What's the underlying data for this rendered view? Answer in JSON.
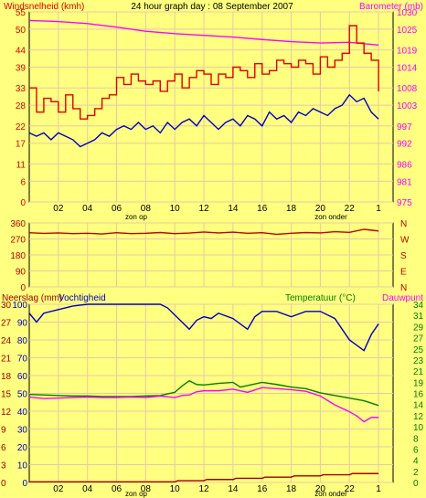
{
  "header": {
    "left_title": "Windsnelheid (kmh)",
    "center_title": "24 hour graph day : 08 September 2007",
    "right_title": "Barometer (mb)"
  },
  "colors": {
    "background": "#ffff80",
    "grid": "#e8c8a8",
    "wind": "#e00000",
    "wind_avg": "#0000c0",
    "baro": "#ff00ff",
    "dir": "#c00000",
    "hum": "#0000c0",
    "temp": "#008000",
    "dew": "#ff00ff",
    "rain": "#a00000"
  },
  "x_ticks": [
    "02",
    "04",
    "06",
    "08",
    "10",
    "12",
    "14",
    "16",
    "18",
    "20",
    "22",
    "1"
  ],
  "sun_labels": {
    "sunrise": "zon op",
    "sunset": "zon onder"
  },
  "panel2": {
    "compass": [
      "N",
      "W",
      "S",
      "E",
      "N"
    ]
  },
  "panel3": {
    "left_title": "Neerslag (mm)",
    "left_title2": "Vochtigheid",
    "right_title": "Temperatuur (°C)",
    "right_title2": "Dauwpunt"
  },
  "chart_data": [
    {
      "type": "line",
      "title": "24 hour graph day : 08 September 2007",
      "x_unit": "hour",
      "x_range": [
        0,
        25
      ],
      "left_axis": {
        "label": "Windsnelheid (kmh)",
        "ticks": [
          0,
          6,
          11,
          17,
          22,
          28,
          33,
          39,
          44,
          50,
          55
        ],
        "range": [
          0,
          55
        ]
      },
      "right_axis": {
        "label": "Barometer (mb)",
        "ticks": [
          975,
          981,
          986,
          992,
          997,
          1003,
          1008,
          1014,
          1019,
          1025,
          1030
        ],
        "range": [
          975,
          1030
        ]
      },
      "series": [
        {
          "name": "Windsnelheid (kmh)",
          "axis": "left",
          "x": [
            0,
            0.5,
            1,
            1.5,
            2,
            2.5,
            3,
            3.5,
            4,
            4.5,
            5,
            5.5,
            6,
            6.5,
            7,
            7.5,
            8,
            8.5,
            9,
            9.5,
            10,
            10.5,
            11,
            11.5,
            12,
            12.5,
            13,
            13.5,
            14,
            14.5,
            15,
            15.5,
            16,
            16.5,
            17,
            17.5,
            18,
            18.5,
            19,
            19.5,
            20,
            20.5,
            21,
            21.5,
            22,
            22.5,
            23,
            23.5,
            24
          ],
          "values": [
            33,
            26,
            30,
            29,
            26,
            31,
            27,
            24,
            25,
            27,
            30,
            31,
            36,
            34,
            37,
            35,
            34,
            35,
            32,
            35,
            37,
            33,
            36,
            38,
            37,
            34,
            37,
            36,
            39,
            38,
            36,
            40,
            37,
            38,
            41,
            40,
            39,
            41,
            40,
            37,
            42,
            39,
            41,
            43,
            51,
            46,
            43,
            41,
            32
          ]
        },
        {
          "name": "Gemiddelde wind",
          "x": [
            0,
            0.5,
            1,
            1.5,
            2,
            2.5,
            3,
            3.5,
            4,
            4.5,
            5,
            5.5,
            6,
            6.5,
            7,
            7.5,
            8,
            8.5,
            9,
            9.5,
            10,
            10.5,
            11,
            11.5,
            12,
            12.5,
            13,
            13.5,
            14,
            14.5,
            15,
            15.5,
            16,
            16.5,
            17,
            17.5,
            18,
            18.5,
            19,
            19.5,
            20,
            20.5,
            21,
            21.5,
            22,
            22.5,
            23,
            23.5,
            24
          ],
          "values": [
            20,
            19,
            20,
            18,
            20,
            19,
            18,
            16,
            17,
            18,
            20,
            19,
            21,
            22,
            21,
            23,
            21,
            22,
            20,
            23,
            21,
            23,
            24,
            22,
            25,
            23,
            21,
            23,
            24,
            22,
            25,
            24,
            22,
            26,
            24,
            25,
            23,
            26,
            25,
            27,
            26,
            25,
            27,
            28,
            31,
            29,
            30,
            26,
            24
          ]
        },
        {
          "name": "Barometer (mb)",
          "axis": "right",
          "x": [
            0,
            2,
            4,
            6,
            8,
            10,
            12,
            14,
            16,
            18,
            20,
            22,
            24
          ],
          "values": [
            1027.5,
            1027.2,
            1026.6,
            1025.6,
            1024.4,
            1023.7,
            1023.2,
            1022.7,
            1022.0,
            1021.4,
            1021.0,
            1021.2,
            1020.4
          ]
        }
      ],
      "annotations": [
        "zon op",
        "zon onder"
      ]
    },
    {
      "type": "line",
      "x_unit": "hour",
      "x_range": [
        0,
        25
      ],
      "left_axis": {
        "ticks": [
          0,
          90,
          180,
          270,
          360
        ],
        "range": [
          0,
          360
        ]
      },
      "right_axis": {
        "ticks": [
          "N",
          "W",
          "S",
          "E",
          "N"
        ]
      },
      "series": [
        {
          "axis": "left",
          "x": [
            0,
            1,
            2,
            3,
            4,
            5,
            6,
            7,
            8,
            9,
            10,
            11,
            12,
            13,
            14,
            15,
            16,
            17,
            18,
            19,
            20,
            21,
            22,
            23,
            24
          ],
          "values": [
            305,
            301,
            304,
            300,
            302,
            298,
            305,
            300,
            302,
            306,
            300,
            303,
            309,
            304,
            308,
            302,
            305,
            296,
            302,
            306,
            304,
            311,
            307,
            324,
            315
          ]
        }
      ]
    },
    {
      "type": "line",
      "x_unit": "hour",
      "x_range": [
        0,
        25
      ],
      "left_axis_outer": {
        "label": "Neerslag (mm)",
        "ticks": [
          0,
          3,
          6,
          9,
          12,
          15,
          18,
          21,
          24,
          27,
          30
        ],
        "range": [
          0,
          30
        ]
      },
      "left_axis_inner": {
        "label": "Vochtigheid",
        "ticks": [
          0,
          10,
          20,
          30,
          40,
          50,
          60,
          70,
          80,
          90,
          100
        ],
        "range": [
          0,
          100
        ]
      },
      "right_axis": {
        "label": "Temperatuur (°C)",
        "ticks": [
          0,
          2,
          4,
          6,
          8,
          10,
          12,
          14,
          16,
          19,
          21,
          23,
          25,
          27,
          29,
          31,
          34
        ],
        "range": [
          0,
          34
        ]
      },
      "series": [
        {
          "name": "Vochtigheid",
          "x": [
            0,
            0.5,
            1,
            2,
            3,
            4,
            5,
            6,
            7,
            8,
            9,
            9.5,
            10,
            10.5,
            11,
            11.5,
            12,
            12.5,
            13,
            14,
            15,
            15.5,
            16,
            17,
            18,
            19,
            20,
            21,
            21.5,
            22,
            22.5,
            23,
            23.5,
            24
          ],
          "values": [
            95,
            90,
            95,
            97,
            99,
            100,
            100,
            100,
            100,
            100,
            100,
            98,
            94,
            90,
            86,
            91,
            93,
            92,
            95,
            92,
            86,
            93,
            96,
            96,
            93,
            96,
            96,
            92,
            86,
            80,
            77,
            74,
            83,
            89
          ]
        },
        {
          "name": "Temperatuur (°C)",
          "x": [
            0,
            1,
            2,
            3,
            4,
            5,
            6,
            7,
            8,
            9,
            10,
            10.5,
            11,
            11.5,
            12,
            13,
            14,
            14.5,
            15,
            16,
            17,
            18,
            19,
            20,
            21,
            22,
            23,
            24
          ],
          "values": [
            16.8,
            16.7,
            16.6,
            16.5,
            16.5,
            16.4,
            16.4,
            16.4,
            16.5,
            16.6,
            17.2,
            18.4,
            19.4,
            18.7,
            18.6,
            18.9,
            19.1,
            18.2,
            18.5,
            19.1,
            18.7,
            18.2,
            17.9,
            17.1,
            16.6,
            16.1,
            15.6,
            14.7
          ]
        },
        {
          "name": "Dauwpunt",
          "x": [
            0,
            1,
            2,
            3,
            4,
            5,
            6,
            7,
            8,
            9,
            10,
            10.5,
            11,
            11.5,
            12,
            13,
            14,
            15,
            16,
            17,
            18,
            19,
            20,
            21,
            22,
            22.5,
            23,
            23.5,
            24
          ],
          "values": [
            16.3,
            16.0,
            16.1,
            16.2,
            16.3,
            16.2,
            16.2,
            16.3,
            16.2,
            16.5,
            16.2,
            16.6,
            16.7,
            17.3,
            17.5,
            17.5,
            17.8,
            17.2,
            18.1,
            17.9,
            17.7,
            17.4,
            16.5,
            14.8,
            13.5,
            12.7,
            11.6,
            12.4,
            12.4
          ]
        },
        {
          "name": "Neerslag (mm)",
          "x": [
            0,
            10,
            10.2,
            12,
            12.2,
            14,
            14.2,
            16,
            16.2,
            18,
            18.2,
            20,
            20.2,
            22,
            22.2,
            24
          ],
          "values": [
            0.1,
            0.1,
            0.3,
            0.3,
            0.5,
            0.5,
            0.7,
            0.7,
            0.9,
            0.9,
            1.1,
            1.1,
            1.3,
            1.3,
            1.5,
            1.5
          ]
        }
      ]
    }
  ]
}
